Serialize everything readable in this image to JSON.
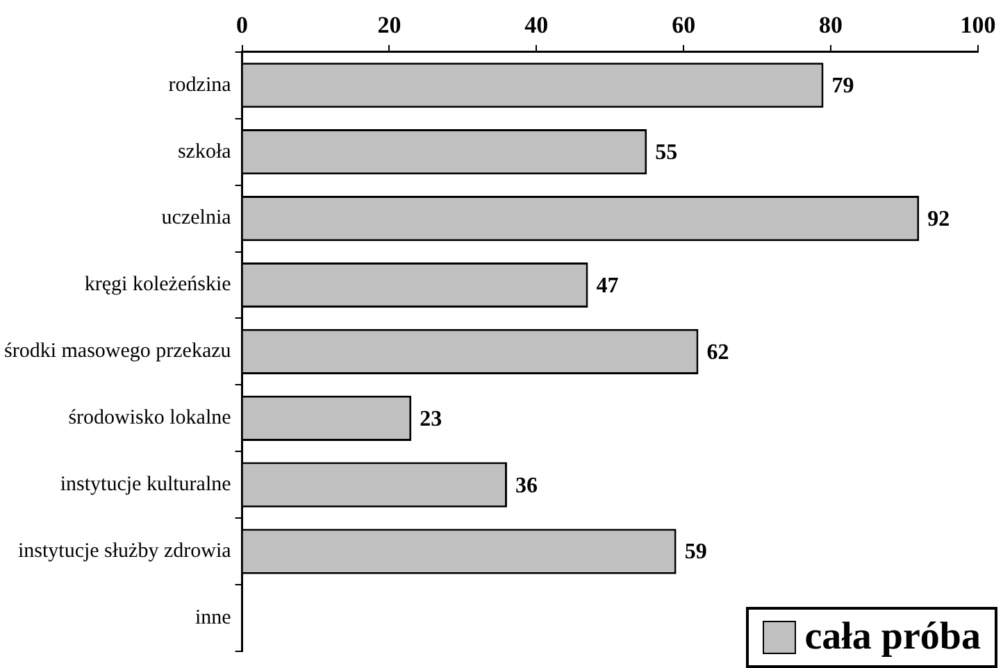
{
  "chart_data": {
    "type": "bar",
    "orientation": "horizontal",
    "categories": [
      "rodzina",
      "szkoła",
      "uczelnia",
      "kręgi koleżeńskie",
      "środki masowego przekazu",
      "środowisko lokalne",
      "instytucje kulturalne",
      "instytucje służby zdrowia",
      "inne"
    ],
    "series": [
      {
        "name": "cała próba",
        "color": "#c0c0c0",
        "values": [
          79,
          55,
          92,
          47,
          62,
          23,
          36,
          59,
          null
        ]
      }
    ],
    "xlim": [
      0,
      100
    ],
    "xticks": [
      0,
      20,
      40,
      60,
      80,
      100
    ],
    "grid": false,
    "legend": "bottom right",
    "data_labels": true
  }
}
